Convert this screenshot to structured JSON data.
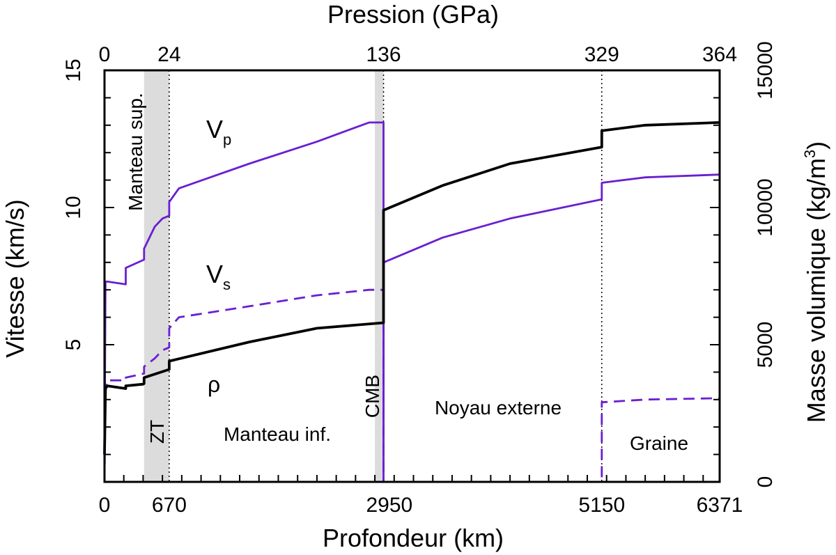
{
  "chart_data": {
    "type": "line",
    "top_axis": {
      "label": "Pression (GPa)",
      "ticks": [
        {
          "depth": 0,
          "label": "0"
        },
        {
          "depth": 670,
          "label": "24"
        },
        {
          "depth": 2890,
          "label": "136"
        },
        {
          "depth": 5150,
          "label": "329"
        },
        {
          "depth": 6371,
          "label": "364"
        }
      ]
    },
    "x_axis": {
      "label": "Profondeur (km)",
      "range": [
        0,
        6371
      ],
      "tick_labels": [
        {
          "depth": 0,
          "label": "0"
        },
        {
          "depth": 670,
          "label": "670"
        },
        {
          "depth": 2950,
          "label": "2950"
        },
        {
          "depth": 5150,
          "label": "5150"
        },
        {
          "depth": 6371,
          "label": "6371"
        }
      ],
      "minor_tick_step": 200
    },
    "y_left": {
      "label": "Vitesse (km/s)",
      "range": [
        0,
        15
      ],
      "tick_labels": [
        "5",
        "10",
        "15"
      ],
      "tick_values": [
        5,
        10,
        15
      ],
      "minor_tick_step": 1
    },
    "y_right": {
      "label": "Masse volumique (kg/m",
      "label_superscript": "3",
      "label_close": ")",
      "range": [
        0,
        15000
      ],
      "tick_labels": [
        "0",
        "5000",
        "10000",
        "15000"
      ],
      "tick_values": [
        0,
        5000,
        10000,
        15000
      ],
      "minor_tick_step": 1000
    },
    "shaded_zones": [
      [
        410,
        670
      ],
      [
        2800,
        2890
      ]
    ],
    "boundary_lines": [
      0,
      670,
      2890,
      5150
    ],
    "region_labels": {
      "upper_mantle": "Manteau sup.",
      "transition_zone": "ZT",
      "lower_mantle": "Manteau inf.",
      "cmb": "CMB",
      "outer_core": "Noyau externe",
      "inner_core": "Graine"
    },
    "series_labels": {
      "vp_main": "V",
      "vp_sub": "p",
      "vs_main": "V",
      "vs_sub": "s",
      "rho": "ρ"
    },
    "series": [
      {
        "name": "Vp",
        "axis": "left",
        "color": "#6a1fd0",
        "style": "solid",
        "points": [
          [
            0,
            0.6
          ],
          [
            10,
            7.3
          ],
          [
            30,
            7.3
          ],
          [
            220,
            7.2
          ],
          [
            220,
            7.8
          ],
          [
            410,
            8.1
          ],
          [
            410,
            8.5
          ],
          [
            520,
            9.3
          ],
          [
            600,
            9.6
          ],
          [
            670,
            9.7
          ],
          [
            670,
            10.2
          ],
          [
            771,
            10.7
          ],
          [
            1500,
            11.6
          ],
          [
            2200,
            12.4
          ],
          [
            2740,
            13.1
          ],
          [
            2890,
            13.1
          ],
          [
            2890,
            0
          ],
          [
            2891,
            8.0
          ],
          [
            3500,
            8.9
          ],
          [
            4200,
            9.6
          ],
          [
            5150,
            10.3
          ],
          [
            5150,
            10.9
          ],
          [
            5600,
            11.1
          ],
          [
            6371,
            11.2
          ]
        ]
      },
      {
        "name": "Vs",
        "axis": "left",
        "color": "#6a1fd0",
        "style": "dashed",
        "points": [
          [
            0,
            0
          ],
          [
            10,
            3.4
          ],
          [
            30,
            3.7
          ],
          [
            220,
            3.7
          ],
          [
            220,
            3.8
          ],
          [
            410,
            3.95
          ],
          [
            410,
            4.2
          ],
          [
            520,
            4.5
          ],
          [
            600,
            4.8
          ],
          [
            670,
            4.9
          ],
          [
            670,
            5.6
          ],
          [
            771,
            6.0
          ],
          [
            1500,
            6.4
          ],
          [
            2200,
            6.8
          ],
          [
            2740,
            7.0
          ],
          [
            2890,
            7.0
          ],
          [
            2890,
            0
          ],
          [
            5150,
            0
          ],
          [
            5150,
            2.9
          ],
          [
            5600,
            3.0
          ],
          [
            6371,
            3.05
          ]
        ]
      },
      {
        "name": "rho",
        "axis": "right",
        "color": "#000000",
        "style": "solid",
        "points": [
          [
            0,
            1000
          ],
          [
            10,
            3400
          ],
          [
            30,
            3500
          ],
          [
            220,
            3400
          ],
          [
            220,
            3500
          ],
          [
            400,
            3560
          ],
          [
            410,
            3580
          ],
          [
            410,
            3800
          ],
          [
            670,
            4100
          ],
          [
            670,
            4400
          ],
          [
            1500,
            5100
          ],
          [
            2200,
            5600
          ],
          [
            2890,
            5800
          ],
          [
            2890,
            9900
          ],
          [
            3500,
            10800
          ],
          [
            4200,
            11600
          ],
          [
            5150,
            12200
          ],
          [
            5150,
            12800
          ],
          [
            5600,
            13000
          ],
          [
            6371,
            13100
          ]
        ]
      }
    ]
  }
}
